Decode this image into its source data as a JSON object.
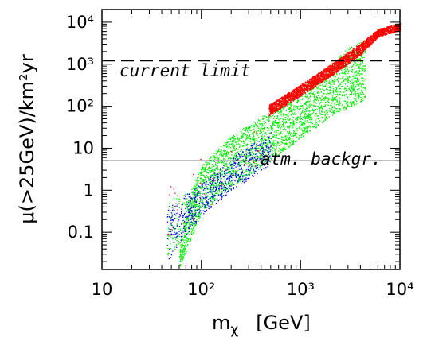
{
  "chart_data": {
    "type": "scatter",
    "x_scale": "log",
    "y_scale": "log",
    "xlim": [
      10,
      10000
    ],
    "ylim": [
      0.013,
      20000
    ],
    "xlabel_main": "m",
    "xlabel_sub": "χ",
    "xlabel_unit": "[GeV]",
    "ylabel": "μ(>25GeV)/km²yr",
    "x_ticks": [
      {
        "value": 10,
        "label": "10"
      },
      {
        "value": 100,
        "label": "10²"
      },
      {
        "value": 1000,
        "label": "10³"
      },
      {
        "value": 10000,
        "label": "10⁴"
      }
    ],
    "y_ticks": [
      {
        "value": 0.1,
        "label": "0.1"
      },
      {
        "value": 1,
        "label": "1"
      },
      {
        "value": 10,
        "label": "10"
      },
      {
        "value": 100,
        "label": "10²"
      },
      {
        "value": 1000,
        "label": "10³"
      },
      {
        "value": 10000,
        "label": "10⁴"
      }
    ],
    "reference_lines": [
      {
        "label": "current limit",
        "y": 1200,
        "style": "dashed"
      },
      {
        "label": "atm. backgr.",
        "y": 5,
        "style": "solid"
      }
    ],
    "series": [
      {
        "color": "#00ee00",
        "regions": [
          {
            "x_min": 60,
            "x_max": 4500,
            "y_lower": [
              [
                60,
                0.014
              ],
              [
                100,
                0.3
              ],
              [
                200,
                1.2
              ],
              [
                500,
                5
              ],
              [
                1000,
                18
              ],
              [
                2000,
                55
              ],
              [
                3000,
                90
              ],
              [
                4500,
                150
              ]
            ],
            "y_upper": [
              [
                60,
                0.05
              ],
              [
                80,
                1
              ],
              [
                100,
                4
              ],
              [
                200,
                20
              ],
              [
                500,
                80
              ],
              [
                1000,
                250
              ],
              [
                2000,
                1000
              ],
              [
                3000,
                2500
              ],
              [
                4500,
                4000
              ]
            ],
            "count": 3200
          },
          {
            "x_min": 45,
            "x_max": 90,
            "y_lower": [
              [
                45,
                0.02
              ],
              [
                90,
                0.2
              ]
            ],
            "y_upper": [
              [
                45,
                0.5
              ],
              [
                90,
                2
              ]
            ],
            "count": 150
          }
        ]
      },
      {
        "color": "#0000ee",
        "regions": [
          {
            "x_min": 45,
            "x_max": 500,
            "y_lower": [
              [
                45,
                0.02
              ],
              [
                100,
                0.25
              ],
              [
                200,
                1
              ],
              [
                500,
                4
              ]
            ],
            "y_upper": [
              [
                45,
                0.4
              ],
              [
                100,
                1.5
              ],
              [
                200,
                6
              ],
              [
                500,
                25
              ]
            ],
            "count": 700
          }
        ]
      },
      {
        "color": "#ff0000",
        "regions": [
          {
            "x_min": 480,
            "x_max": 10000,
            "y_lower": [
              [
                480,
                60
              ],
              [
                1000,
                180
              ],
              [
                2000,
                520
              ],
              [
                4000,
                1700
              ],
              [
                6000,
                4500
              ],
              [
                10000,
                6500
              ]
            ],
            "y_upper": [
              [
                480,
                110
              ],
              [
                1000,
                330
              ],
              [
                2000,
                1000
              ],
              [
                4000,
                3200
              ],
              [
                6000,
                7000
              ],
              [
                10000,
                9500
              ]
            ],
            "count": 3000
          },
          {
            "x_min": 45,
            "x_max": 500,
            "y_lower": [
              [
                45,
                0.05
              ],
              [
                500,
                8
              ]
            ],
            "y_upper": [
              [
                45,
                2
              ],
              [
                500,
                50
              ]
            ],
            "count": 40
          }
        ]
      }
    ]
  }
}
